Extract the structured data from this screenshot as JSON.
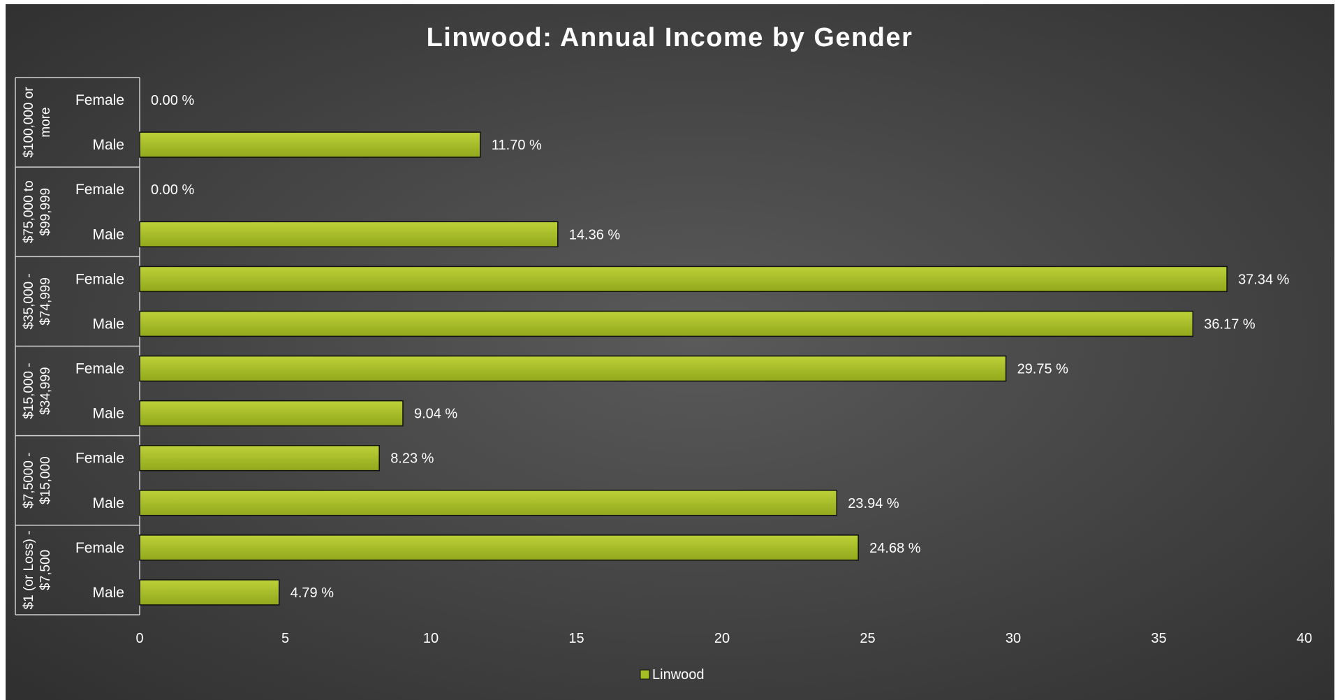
{
  "chart_data": {
    "type": "bar",
    "orientation": "horizontal",
    "title": "Linwood: Annual Income by Gender",
    "xlabel": "",
    "ylabel": "",
    "xlim": [
      0,
      40
    ],
    "x_ticks": [
      "0",
      "5",
      "10",
      "15",
      "20",
      "25",
      "30",
      "35",
      "40"
    ],
    "grid": false,
    "legend_position": "bottom",
    "groups": [
      {
        "label": "$100,000 or more",
        "label_lines": [
          "$100,000 or",
          "more"
        ],
        "categories": [
          "Female",
          "Male"
        ],
        "values": [
          0.0,
          11.7
        ],
        "value_labels": [
          "0.00 %",
          "11.70 %"
        ]
      },
      {
        "label": "$75,000 to $99,999",
        "label_lines": [
          "$75,000 to",
          "$99,999"
        ],
        "categories": [
          "Female",
          "Male"
        ],
        "values": [
          0.0,
          14.36
        ],
        "value_labels": [
          "0.00 %",
          "14.36 %"
        ]
      },
      {
        "label": "$35,000 - $74,999",
        "label_lines": [
          "$35,000 -",
          "$74,999"
        ],
        "categories": [
          "Female",
          "Male"
        ],
        "values": [
          37.34,
          36.17
        ],
        "value_labels": [
          "37.34 %",
          "36.17 %"
        ]
      },
      {
        "label": "$15,000 - $34,999",
        "label_lines": [
          "$15,000 -",
          "$34,999"
        ],
        "categories": [
          "Female",
          "Male"
        ],
        "values": [
          29.75,
          9.04
        ],
        "value_labels": [
          "29.75 %",
          "9.04 %"
        ]
      },
      {
        "label": "$7,5000 - $15,000",
        "label_lines": [
          "$7,5000 -",
          "$15,000"
        ],
        "categories": [
          "Female",
          "Male"
        ],
        "values": [
          8.23,
          23.94
        ],
        "value_labels": [
          "8.23 %",
          "23.94 %"
        ]
      },
      {
        "label": "$1 (or Loss) - $7,500",
        "label_lines": [
          "$1 (or Loss) -",
          "$7,500"
        ],
        "categories": [
          "Female",
          "Male"
        ],
        "values": [
          24.68,
          4.79
        ],
        "value_labels": [
          "24.68 %",
          "4.79 %"
        ]
      }
    ],
    "series": [
      {
        "name": "Linwood",
        "color": "#a6bd24"
      }
    ],
    "colors": {
      "bar_light": "#bcd138",
      "bar_dark": "#93a81c",
      "bar_stroke": "#101010",
      "text": "#ffffff",
      "axis": "#d0d0d0"
    }
  }
}
